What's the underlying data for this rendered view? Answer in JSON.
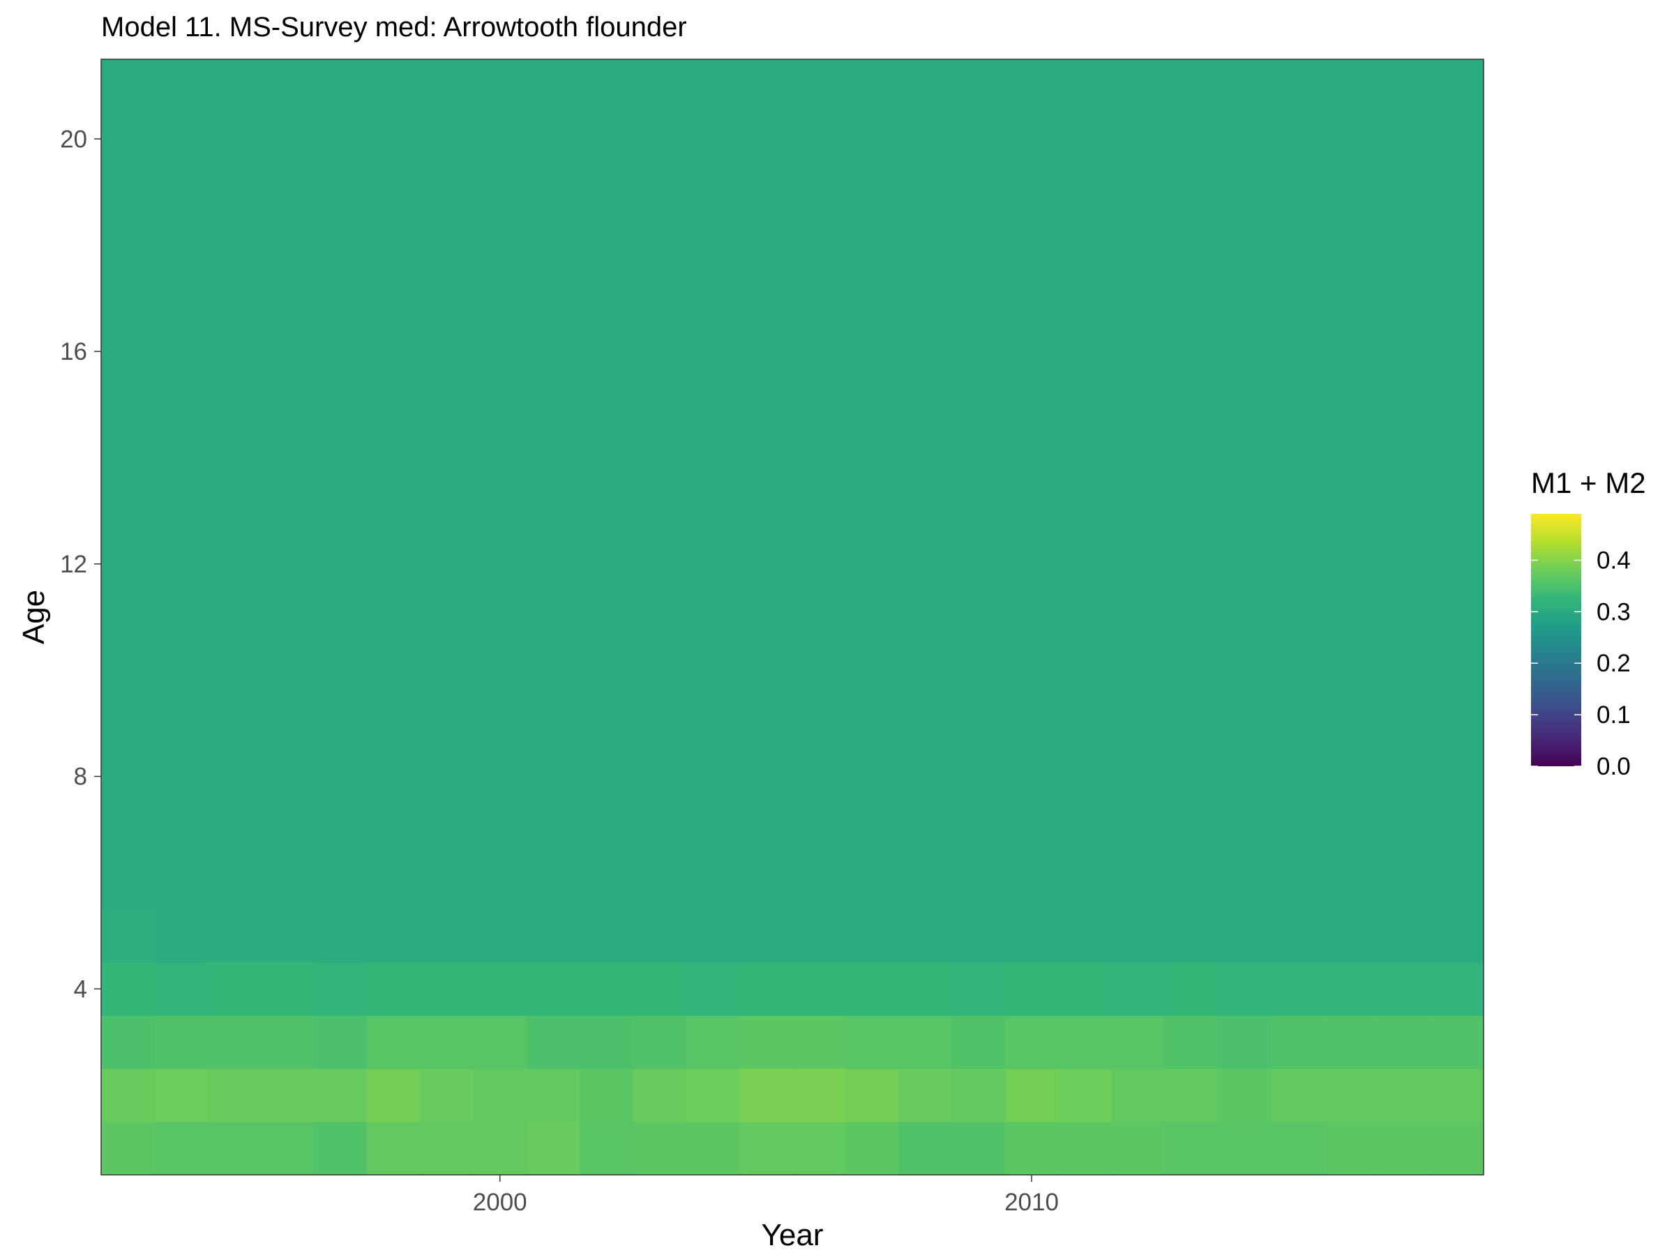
{
  "chart_data": {
    "type": "heatmap",
    "title": "Model 11. MS-Survey med: Arrowtooth flounder",
    "xlabel": "Year",
    "ylabel": "Age",
    "x_ticks": [
      2000,
      2010
    ],
    "y_ticks": [
      4,
      8,
      12,
      16,
      20
    ],
    "xlim": [
      1992.5,
      2018.5
    ],
    "ylim": [
      0.5,
      21.5
    ],
    "years": [
      1993,
      1994,
      1995,
      1996,
      1997,
      1998,
      1999,
      2000,
      2001,
      2002,
      2003,
      2004,
      2005,
      2006,
      2007,
      2008,
      2009,
      2010,
      2011,
      2012,
      2013,
      2014,
      2015,
      2016,
      2017,
      2018
    ],
    "ages": [
      1,
      2,
      3,
      4,
      5,
      6,
      7,
      8,
      9,
      10,
      11,
      12,
      13,
      14,
      15,
      16,
      17,
      18,
      19,
      20,
      21
    ],
    "low_age_values": {
      "1": [
        0.365,
        0.36,
        0.36,
        0.36,
        0.355,
        0.37,
        0.37,
        0.37,
        0.375,
        0.36,
        0.365,
        0.365,
        0.37,
        0.37,
        0.365,
        0.355,
        0.355,
        0.365,
        0.365,
        0.365,
        0.36,
        0.36,
        0.36,
        0.365,
        0.365,
        0.365
      ],
      "2": [
        0.375,
        0.38,
        0.375,
        0.375,
        0.375,
        0.385,
        0.375,
        0.37,
        0.37,
        0.365,
        0.375,
        0.38,
        0.39,
        0.39,
        0.385,
        0.375,
        0.37,
        0.385,
        0.38,
        0.37,
        0.37,
        0.365,
        0.37,
        0.37,
        0.37,
        0.37
      ],
      "3": [
        0.35,
        0.355,
        0.355,
        0.355,
        0.35,
        0.36,
        0.36,
        0.36,
        0.35,
        0.35,
        0.355,
        0.36,
        0.365,
        0.365,
        0.36,
        0.36,
        0.355,
        0.36,
        0.36,
        0.36,
        0.355,
        0.35,
        0.355,
        0.355,
        0.355,
        0.355
      ],
      "4": [
        0.325,
        0.32,
        0.325,
        0.325,
        0.32,
        0.325,
        0.325,
        0.325,
        0.325,
        0.325,
        0.325,
        0.32,
        0.325,
        0.325,
        0.325,
        0.325,
        0.32,
        0.325,
        0.325,
        0.32,
        0.325,
        0.32,
        0.32,
        0.32,
        0.32,
        0.32
      ],
      "5": [
        0.307,
        0.305,
        0.305,
        0.305,
        0.305,
        0.303,
        0.303,
        0.303,
        0.303,
        0.303,
        0.303,
        0.303,
        0.303,
        0.303,
        0.303,
        0.303,
        0.303,
        0.303,
        0.303,
        0.303,
        0.303,
        0.303,
        0.303,
        0.303,
        0.303,
        0.303
      ],
      "6": [
        0.302,
        0.302,
        0.302,
        0.302,
        0.302,
        0.301,
        0.301,
        0.301,
        0.301,
        0.301,
        0.301,
        0.301,
        0.301,
        0.301,
        0.301,
        0.301,
        0.301,
        0.3,
        0.3,
        0.3,
        0.3,
        0.299,
        0.299,
        0.299,
        0.299,
        0.299
      ]
    },
    "high_age_value": 0.3,
    "colorbar": {
      "title": "M1 + M2",
      "ticks": [
        0.0,
        0.1,
        0.2,
        0.3,
        0.4
      ],
      "range": [
        0.0,
        0.49
      ],
      "palette": [
        "#440154",
        "#482878",
        "#3E4A89",
        "#31688E",
        "#26828E",
        "#1F9E89",
        "#35B779",
        "#6DCD59",
        "#B4DE2C",
        "#FDE725"
      ]
    },
    "grid": false,
    "legend_position": "right"
  }
}
